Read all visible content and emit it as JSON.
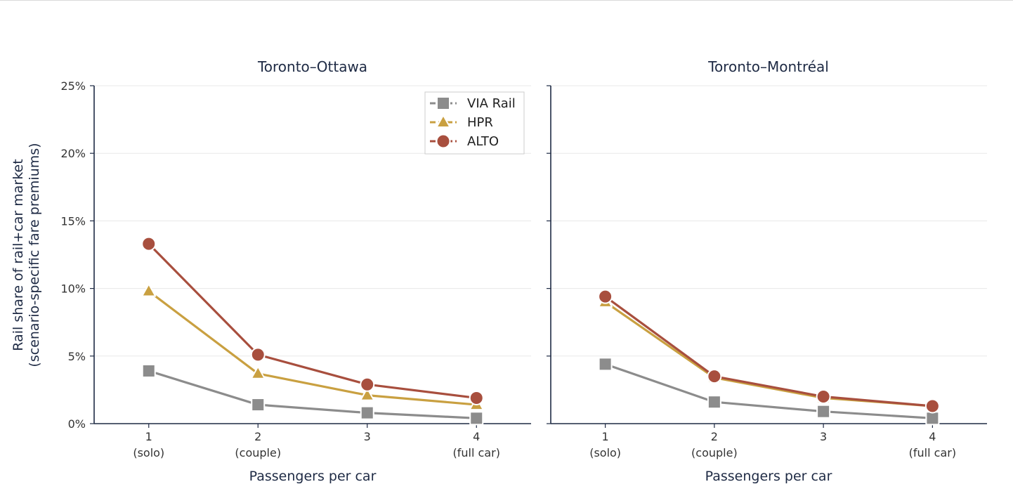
{
  "chart_data": [
    {
      "type": "line",
      "title": "Toronto–Ottawa",
      "xlabel": "Passengers per car",
      "ylabel": "Rail share of rail+car market",
      "ylabel_line2": "(scenario-specific fare premiums)",
      "x": [
        1,
        2,
        3,
        4
      ],
      "x_tick_labels": [
        "1",
        "2",
        "3",
        "4"
      ],
      "x_tick_sublabels": [
        "(solo)",
        "(couple)",
        "",
        "(full car)"
      ],
      "ylim": [
        0,
        25
      ],
      "y_ticks": [
        0,
        5,
        10,
        15,
        20,
        25
      ],
      "y_tick_labels": [
        "0%",
        "5%",
        "10%",
        "15%",
        "20%",
        "25%"
      ],
      "grid": "horizontal",
      "legend": "top-right",
      "series": [
        {
          "name": "VIA Rail",
          "values": [
            3.9,
            1.4,
            0.8,
            0.4
          ],
          "color": "#8c8c8c",
          "marker": "square"
        },
        {
          "name": "HPR",
          "values": [
            9.8,
            3.7,
            2.1,
            1.4
          ],
          "color": "#c9a041",
          "marker": "triangle"
        },
        {
          "name": "ALTO",
          "values": [
            13.3,
            5.1,
            2.9,
            1.9
          ],
          "color": "#a84f3e",
          "marker": "circle"
        }
      ]
    },
    {
      "type": "line",
      "title": "Toronto–Montréal",
      "xlabel": "Passengers per car",
      "x": [
        1,
        2,
        3,
        4
      ],
      "x_tick_labels": [
        "1",
        "2",
        "3",
        "4"
      ],
      "x_tick_sublabels": [
        "(solo)",
        "(couple)",
        "",
        "(full car)"
      ],
      "ylim": [
        0,
        25
      ],
      "y_ticks": [
        0,
        5,
        10,
        15,
        20,
        25
      ],
      "grid": "horizontal",
      "series": [
        {
          "values": [
            4.4,
            1.6,
            0.9,
            0.4
          ],
          "color": "#8c8c8c",
          "marker": "square"
        },
        {
          "values": [
            9.0,
            3.4,
            1.9,
            1.3
          ],
          "color": "#c9a041",
          "marker": "triangle"
        },
        {
          "values": [
            9.4,
            3.5,
            2.0,
            1.3
          ],
          "color": "#a84f3e",
          "marker": "circle"
        }
      ]
    }
  ]
}
